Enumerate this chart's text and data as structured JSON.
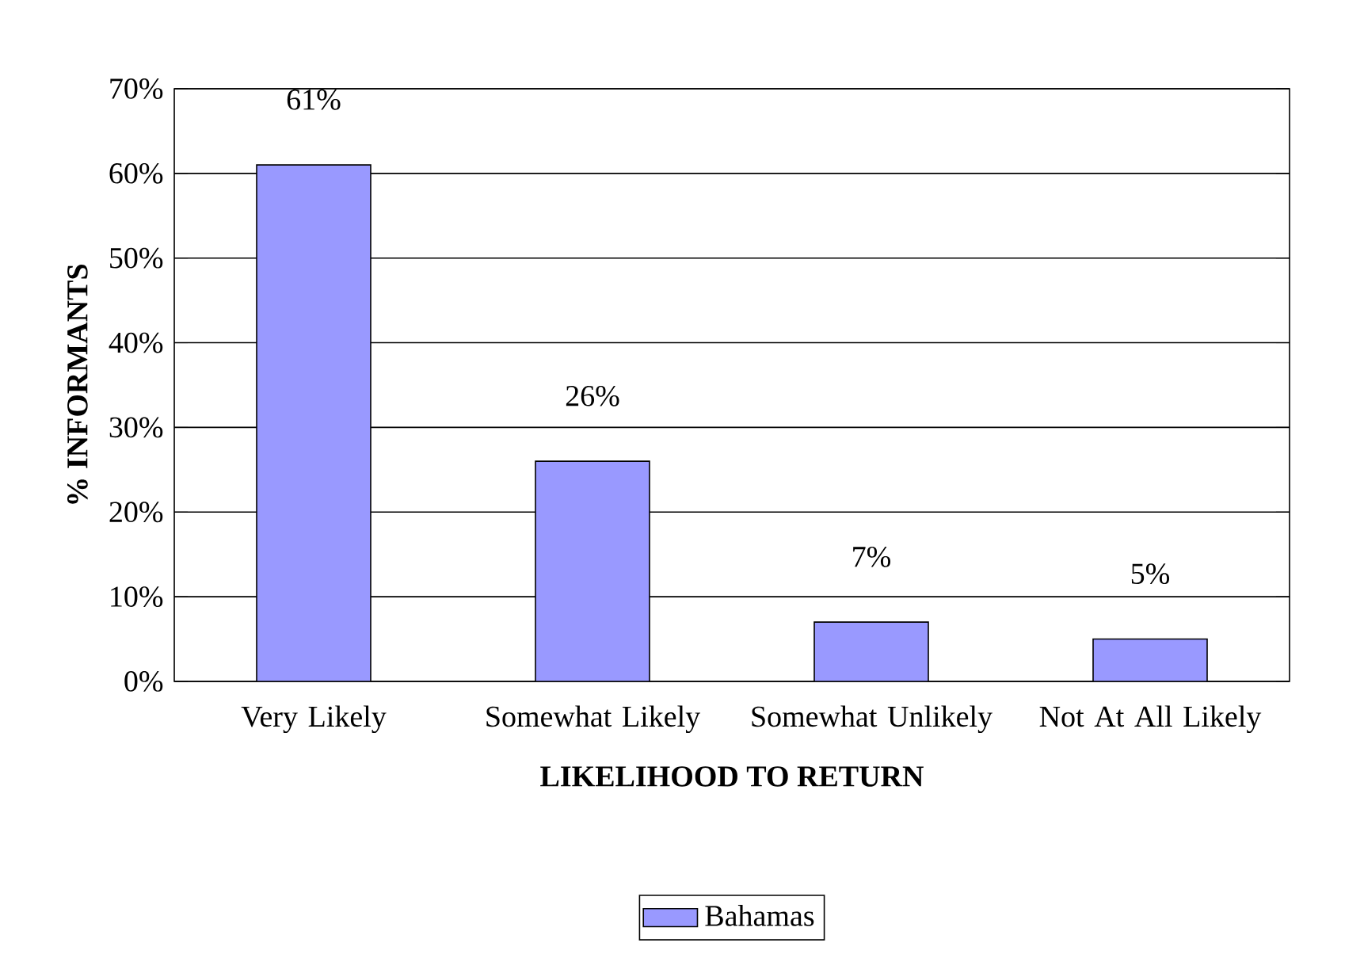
{
  "chart_data": {
    "type": "bar",
    "xlabel": "LIKELIHOOD TO RETURN",
    "ylabel": "% INFORMANTS",
    "categories": [
      "Very Likely",
      "Somewhat Likely",
      "Somewhat Unlikely",
      "Not At All Likely"
    ],
    "series": [
      {
        "name": "Bahamas",
        "color": "#9999ff",
        "values": [
          61,
          26,
          7,
          5
        ],
        "value_labels": [
          "61%",
          "26%",
          "7%",
          "5%"
        ]
      }
    ],
    "ylim": [
      0,
      70
    ],
    "yticks": [
      {
        "value": 0,
        "label": "0%"
      },
      {
        "value": 10,
        "label": "10%"
      },
      {
        "value": 20,
        "label": "20%"
      },
      {
        "value": 30,
        "label": "30%"
      },
      {
        "value": 40,
        "label": "40%"
      },
      {
        "value": 50,
        "label": "50%"
      },
      {
        "value": 60,
        "label": "60%"
      },
      {
        "value": 70,
        "label": "70%"
      }
    ],
    "grid": "y",
    "legend": "bottom"
  }
}
